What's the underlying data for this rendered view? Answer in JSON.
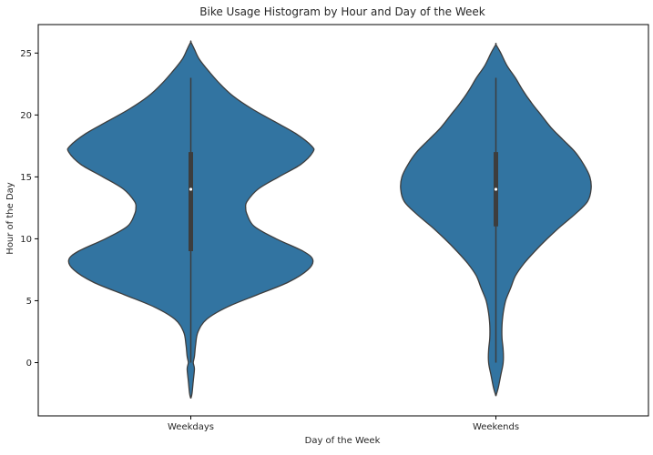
{
  "chart_data": {
    "type": "violin",
    "title": "Bike Usage Histogram by Hour and Day of the Week",
    "xlabel": "Day of the Week",
    "ylabel": "Hour of the Day",
    "categories": [
      "Weekdays",
      "Weekends"
    ],
    "ylim": [
      -4.3,
      27.3
    ],
    "yticks": [
      0,
      5,
      10,
      15,
      20,
      25
    ],
    "fill_color": "#3274a1",
    "edge_color": "#3d3d3d",
    "grid": false,
    "legend": "none",
    "violins": [
      {
        "category": "Weekdays",
        "range": [
          -2.9,
          25.9
        ],
        "quartiles": {
          "q1": 9,
          "median": 14,
          "q3": 17
        },
        "whiskers": [
          0,
          23
        ],
        "density_profile": [
          [
            -2.9,
            0.0
          ],
          [
            -2.5,
            0.01
          ],
          [
            -1.5,
            0.02
          ],
          [
            -0.5,
            0.03
          ],
          [
            0.0,
            0.02
          ],
          [
            0.5,
            0.03
          ],
          [
            1.5,
            0.04
          ],
          [
            2.5,
            0.06
          ],
          [
            3.5,
            0.13
          ],
          [
            4.5,
            0.3
          ],
          [
            5.5,
            0.55
          ],
          [
            6.5,
            0.8
          ],
          [
            7.5,
            0.96
          ],
          [
            8.3,
            1.0
          ],
          [
            9.0,
            0.92
          ],
          [
            10.0,
            0.7
          ],
          [
            11.0,
            0.52
          ],
          [
            12.0,
            0.46
          ],
          [
            12.5,
            0.45
          ],
          [
            13.0,
            0.46
          ],
          [
            14.0,
            0.55
          ],
          [
            15.0,
            0.72
          ],
          [
            16.0,
            0.9
          ],
          [
            17.0,
            1.0
          ],
          [
            17.5,
            0.99
          ],
          [
            18.5,
            0.86
          ],
          [
            19.5,
            0.68
          ],
          [
            20.5,
            0.5
          ],
          [
            21.5,
            0.35
          ],
          [
            22.5,
            0.24
          ],
          [
            23.5,
            0.15
          ],
          [
            24.5,
            0.07
          ],
          [
            25.3,
            0.03
          ],
          [
            25.9,
            0.0
          ]
        ]
      },
      {
        "category": "Weekends",
        "range": [
          -2.7,
          25.7
        ],
        "quartiles": {
          "q1": 11,
          "median": 14,
          "q3": 17
        },
        "whiskers": [
          0,
          23
        ],
        "density_profile": [
          [
            -2.7,
            0.0
          ],
          [
            -2.0,
            0.02
          ],
          [
            -1.0,
            0.04
          ],
          [
            0.0,
            0.06
          ],
          [
            1.0,
            0.06
          ],
          [
            2.0,
            0.05
          ],
          [
            3.0,
            0.05
          ],
          [
            4.0,
            0.06
          ],
          [
            5.0,
            0.08
          ],
          [
            6.0,
            0.12
          ],
          [
            7.0,
            0.16
          ],
          [
            8.0,
            0.23
          ],
          [
            9.0,
            0.32
          ],
          [
            10.0,
            0.42
          ],
          [
            11.0,
            0.53
          ],
          [
            12.0,
            0.65
          ],
          [
            13.0,
            0.75
          ],
          [
            14.0,
            0.78
          ],
          [
            15.0,
            0.77
          ],
          [
            16.0,
            0.72
          ],
          [
            17.0,
            0.65
          ],
          [
            18.0,
            0.55
          ],
          [
            19.0,
            0.45
          ],
          [
            20.0,
            0.37
          ],
          [
            21.0,
            0.29
          ],
          [
            22.0,
            0.22
          ],
          [
            23.0,
            0.16
          ],
          [
            24.0,
            0.09
          ],
          [
            25.0,
            0.04
          ],
          [
            25.7,
            0.0
          ]
        ]
      }
    ]
  }
}
